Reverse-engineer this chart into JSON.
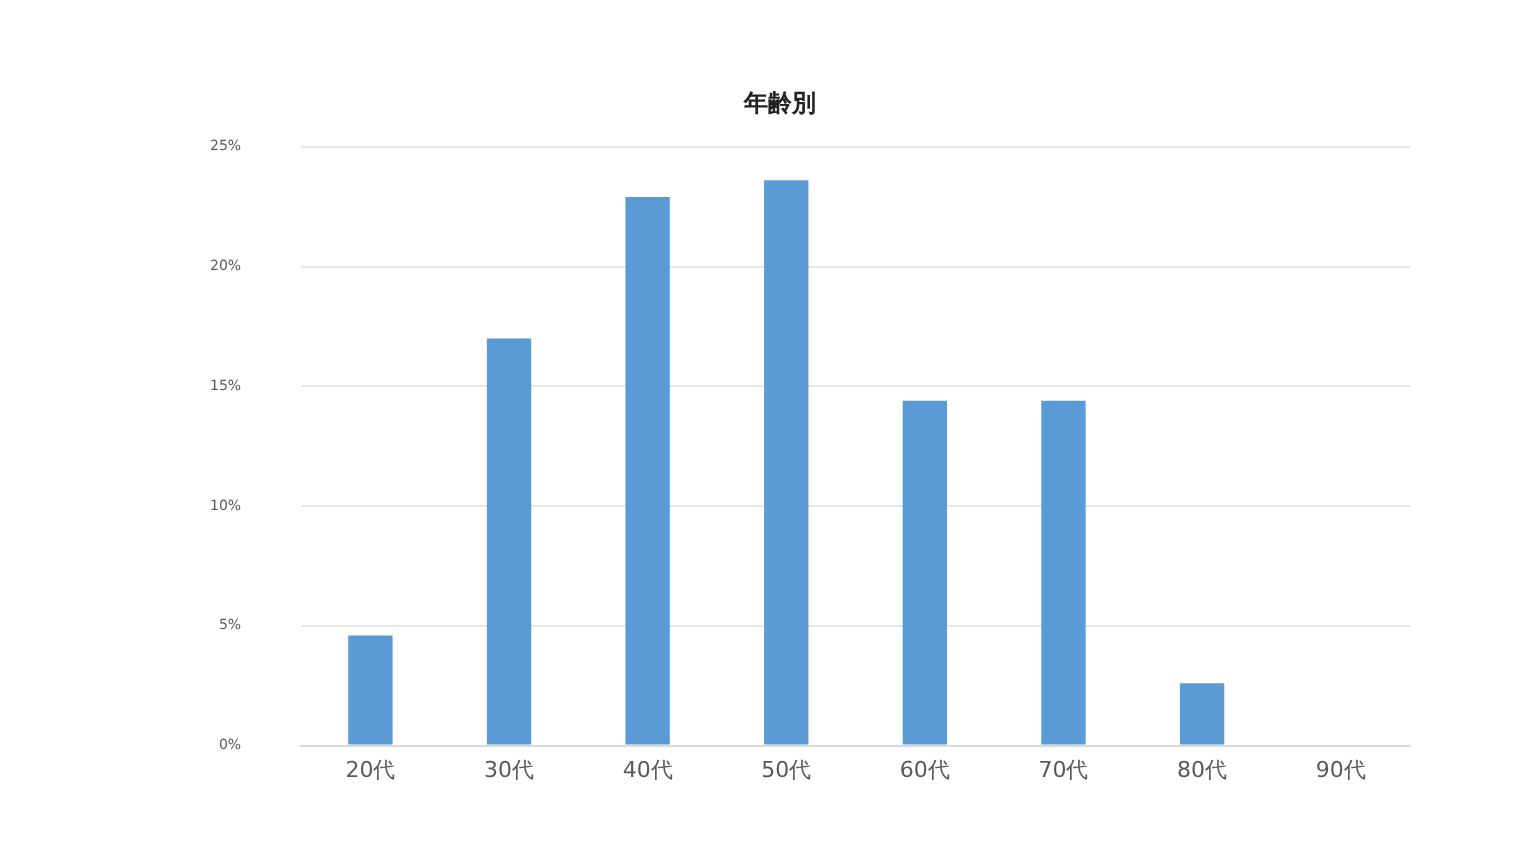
{
  "chart_data": {
    "type": "bar",
    "title": "年齢別",
    "categories": [
      "20代",
      "30代",
      "40代",
      "50代",
      "60代",
      "70代",
      "80代",
      "90代"
    ],
    "values": [
      4.6,
      17.0,
      22.9,
      23.6,
      14.4,
      14.4,
      2.6,
      0
    ],
    "color": "#5b9bd5",
    "ylim": [
      0,
      25
    ],
    "yticks": [
      {
        "value": 0,
        "label": "0%"
      },
      {
        "value": 5,
        "label": "5%"
      },
      {
        "value": 10,
        "label": "10%"
      },
      {
        "value": 15,
        "label": "15%"
      },
      {
        "value": 20,
        "label": "20%"
      },
      {
        "value": 25,
        "label": "25%"
      }
    ],
    "grid": "y",
    "legend": false
  }
}
